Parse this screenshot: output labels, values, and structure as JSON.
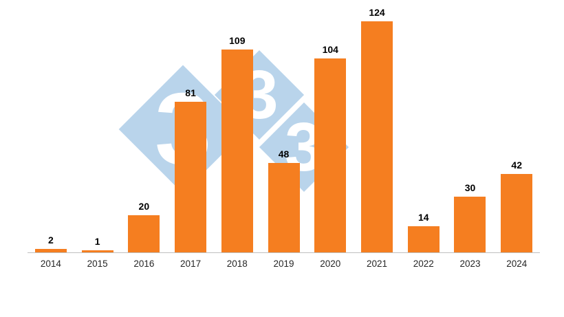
{
  "chart_data": {
    "type": "bar",
    "categories": [
      "2014",
      "2015",
      "2016",
      "2017",
      "2018",
      "2019",
      "2020",
      "2021",
      "2022",
      "2023",
      "2024"
    ],
    "values": [
      2,
      1,
      20,
      81,
      109,
      48,
      104,
      124,
      14,
      30,
      42
    ],
    "title": "",
    "xlabel": "",
    "ylabel": "",
    "ylim": [
      0,
      124
    ],
    "grid": false,
    "legend": false,
    "bar_color": "#F57E20",
    "value_label_color": "#000000",
    "axis_line_color": "#BFBFBF"
  },
  "watermark": {
    "name": "333-logo",
    "glyph": "3",
    "color": "#B9D4EB"
  }
}
